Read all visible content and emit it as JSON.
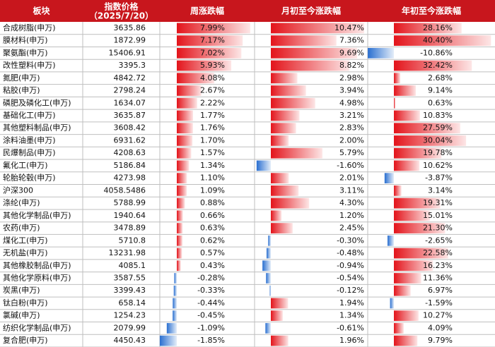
{
  "table": {
    "columns": [
      "板块",
      "指数价格",
      "周涨跌幅",
      "月初至今涨跌幅",
      "年初至今涨跌幅"
    ],
    "price_date": "（2025/7/20）",
    "rows": [
      [
        "合成树脂(申万)",
        "3635.86",
        "7.99%",
        "10.47%",
        "28.16%"
      ],
      [
        "膜材料(申万)",
        "1872.99",
        "7.17%",
        "7.36%",
        "40.40%"
      ],
      [
        "聚氨酯(申万)",
        "15406.91",
        "7.02%",
        "9.69%",
        "-10.86%"
      ],
      [
        "改性塑料(申万)",
        "3395.3",
        "5.93%",
        "8.82%",
        "32.42%"
      ],
      [
        "氮肥(申万)",
        "4842.72",
        "4.08%",
        "2.98%",
        "2.68%"
      ],
      [
        "粘胶(申万)",
        "2798.24",
        "2.67%",
        "3.94%",
        "9.14%"
      ],
      [
        "磷肥及磷化工(申万)",
        "1634.07",
        "2.22%",
        "4.98%",
        "0.63%"
      ],
      [
        "基础化工(申万)",
        "3635.87",
        "1.77%",
        "3.21%",
        "10.83%"
      ],
      [
        "其他塑料制品(申万)",
        "3608.42",
        "1.76%",
        "2.83%",
        "27.59%"
      ],
      [
        "涂料油墨(申万)",
        "6931.62",
        "1.70%",
        "2.00%",
        "30.04%"
      ],
      [
        "民爆制品(申万)",
        "4208.63",
        "1.57%",
        "5.79%",
        "19.78%"
      ],
      [
        "氟化工(申万)",
        "5186.84",
        "1.34%",
        "-1.60%",
        "10.62%"
      ],
      [
        "轮胎轮毂(申万)",
        "4273.98",
        "1.10%",
        "2.01%",
        "-3.87%"
      ],
      [
        "沪深300",
        "4058.5486",
        "1.09%",
        "3.11%",
        "3.14%"
      ],
      [
        "涤纶(申万)",
        "5788.99",
        "0.88%",
        "4.30%",
        "19.31%"
      ],
      [
        "其他化学制品(申万)",
        "1940.64",
        "0.66%",
        "1.20%",
        "15.01%"
      ],
      [
        "农药(申万)",
        "3478.89",
        "0.63%",
        "2.45%",
        "21.30%"
      ],
      [
        "煤化工(申万)",
        "5710.8",
        "0.62%",
        "-0.30%",
        "-2.65%"
      ],
      [
        "无机盐(申万)",
        "13231.98",
        "0.57%",
        "-0.48%",
        "22.58%"
      ],
      [
        "其他橡胶制品(申万)",
        "4085.1",
        "0.43%",
        "-0.94%",
        "16.23%"
      ],
      [
        "其他化学原料(申万)",
        "3587.55",
        "-0.28%",
        "-0.54%",
        "11.36%"
      ],
      [
        "炭黑(申万)",
        "3399.43",
        "-0.33%",
        "-0.12%",
        "6.97%"
      ],
      [
        "钛白粉(申万)",
        "658.14",
        "-0.44%",
        "1.94%",
        "-1.59%"
      ],
      [
        "氯碱(申万)",
        "1254.23",
        "-0.45%",
        "1.34%",
        "10.27%"
      ],
      [
        "纺织化学制品(申万)",
        "2079.99",
        "-1.09%",
        "-0.61%",
        "4.09%"
      ],
      [
        "复合肥(申万)",
        "4450.43",
        "-1.85%",
        "1.96%",
        "9.79%"
      ]
    ]
  }
}
